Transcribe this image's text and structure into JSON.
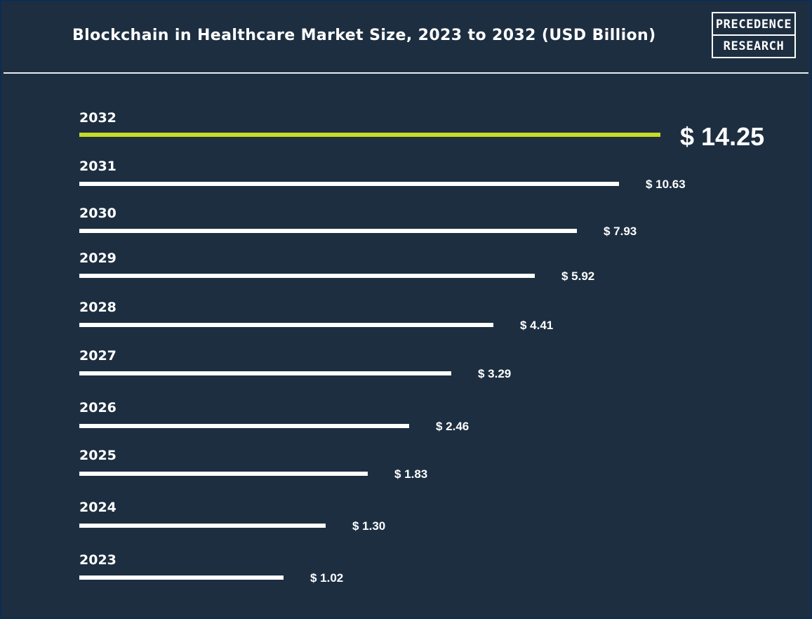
{
  "header": {
    "title": "Blockchain in Healthcare Market Size, 2023 to 2032 (USD Billion)",
    "logo_line1": "PRECEDENCE",
    "logo_line2": "RESEARCH"
  },
  "colors": {
    "background": "#1d2e41",
    "bar": "#ffffff",
    "highlight_bar": "#c5dc27",
    "text": "#ffffff"
  },
  "chart_data": {
    "type": "bar",
    "orientation": "horizontal",
    "title": "Blockchain in Healthcare Market Size, 2023 to 2032 (USD Billion)",
    "categories": [
      "2032",
      "2031",
      "2030",
      "2029",
      "2028",
      "2027",
      "2026",
      "2025",
      "2024",
      "2023"
    ],
    "values": [
      14.25,
      10.63,
      7.93,
      5.92,
      4.41,
      3.29,
      2.46,
      1.83,
      1.3,
      1.02
    ],
    "value_labels": [
      "$ 14.25",
      "$ 10.63",
      "$ 7.93",
      "$ 5.92",
      "$ 4.41",
      "$ 3.29",
      "$ 2.46",
      "$ 1.83",
      "$ 1.30",
      "$ 1.02"
    ],
    "highlight_category": "2032",
    "grid": false,
    "legend": "none",
    "xlabel": "",
    "ylabel": ""
  }
}
